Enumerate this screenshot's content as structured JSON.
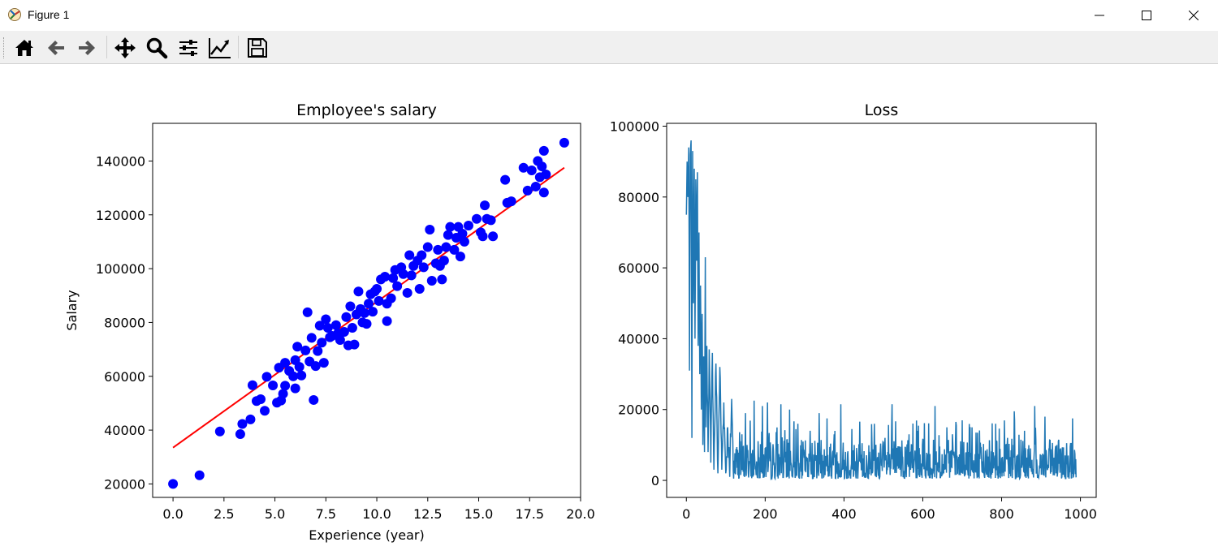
{
  "window": {
    "title": "Figure 1"
  },
  "toolbar": {
    "buttons": [
      {
        "icon": "home-icon"
      },
      {
        "icon": "back-arrow-icon"
      },
      {
        "icon": "forward-arrow-icon"
      },
      {
        "icon": "pan-icon"
      },
      {
        "icon": "zoom-icon"
      },
      {
        "icon": "subplots-config-icon"
      },
      {
        "icon": "edit-axes-icon"
      },
      {
        "icon": "save-icon"
      }
    ]
  },
  "chart_data": [
    {
      "type": "scatter",
      "title": "Employee's salary",
      "xlabel": "Experience (year)",
      "ylabel": "Salary",
      "xlim": [
        -1.0,
        20.0
      ],
      "ylim": [
        15000,
        154000
      ],
      "xticks": [
        0.0,
        2.5,
        5.0,
        7.5,
        10.0,
        12.5,
        15.0,
        17.5,
        20.0
      ],
      "xticklabels": [
        "0.0",
        "2.5",
        "5.0",
        "7.5",
        "10.0",
        "12.5",
        "15.0",
        "17.5",
        "20.0"
      ],
      "yticks": [
        20000,
        40000,
        60000,
        80000,
        100000,
        120000,
        140000
      ],
      "yticklabels": [
        "20000",
        "40000",
        "60000",
        "80000",
        "100000",
        "120000",
        "140000"
      ],
      "point_color": "#0000ff",
      "line_color": "#ff0000",
      "fit_line": {
        "x": [
          0.0,
          19.2
        ],
        "y": [
          33500,
          137500
        ]
      },
      "points": [
        [
          0.0,
          20000
        ],
        [
          1.3,
          23200
        ],
        [
          2.3,
          39500
        ],
        [
          3.3,
          38500
        ],
        [
          3.4,
          42300
        ],
        [
          3.8,
          44000
        ],
        [
          3.9,
          56700
        ],
        [
          4.1,
          50800
        ],
        [
          4.3,
          51500
        ],
        [
          4.5,
          47200
        ],
        [
          4.6,
          59800
        ],
        [
          4.9,
          56600
        ],
        [
          5.1,
          50200
        ],
        [
          5.2,
          63200
        ],
        [
          5.3,
          51000
        ],
        [
          5.4,
          53500
        ],
        [
          5.5,
          56500
        ],
        [
          5.5,
          65000
        ],
        [
          5.7,
          62000
        ],
        [
          5.9,
          60000
        ],
        [
          6.0,
          66000
        ],
        [
          6.0,
          55500
        ],
        [
          6.1,
          71000
        ],
        [
          6.2,
          63500
        ],
        [
          6.3,
          60300
        ],
        [
          6.5,
          69600
        ],
        [
          6.6,
          83800
        ],
        [
          6.7,
          65500
        ],
        [
          6.8,
          74300
        ],
        [
          6.9,
          51200
        ],
        [
          7.0,
          63800
        ],
        [
          7.1,
          69400
        ],
        [
          7.2,
          78800
        ],
        [
          7.3,
          72500
        ],
        [
          7.4,
          65000
        ],
        [
          7.5,
          81200
        ],
        [
          7.6,
          78000
        ],
        [
          7.7,
          74500
        ],
        [
          7.8,
          75000
        ],
        [
          8.0,
          79000
        ],
        [
          8.1,
          76000
        ],
        [
          8.2,
          73500
        ],
        [
          8.4,
          76500
        ],
        [
          8.5,
          82000
        ],
        [
          8.6,
          71500
        ],
        [
          8.7,
          86000
        ],
        [
          8.8,
          78000
        ],
        [
          8.9,
          71800
        ],
        [
          9.0,
          83000
        ],
        [
          9.1,
          91500
        ],
        [
          9.2,
          85000
        ],
        [
          9.3,
          80000
        ],
        [
          9.4,
          83500
        ],
        [
          9.5,
          79500
        ],
        [
          9.6,
          87000
        ],
        [
          9.7,
          90500
        ],
        [
          9.8,
          84000
        ],
        [
          9.9,
          91500
        ],
        [
          10.0,
          92500
        ],
        [
          10.1,
          88000
        ],
        [
          10.2,
          96000
        ],
        [
          10.4,
          97000
        ],
        [
          10.5,
          87000
        ],
        [
          10.5,
          80500
        ],
        [
          10.7,
          89000
        ],
        [
          10.8,
          96500
        ],
        [
          10.9,
          99500
        ],
        [
          11.0,
          93500
        ],
        [
          11.2,
          100500
        ],
        [
          11.3,
          98000
        ],
        [
          11.5,
          91000
        ],
        [
          11.6,
          105000
        ],
        [
          11.7,
          97500
        ],
        [
          11.8,
          101000
        ],
        [
          12.0,
          103000
        ],
        [
          12.1,
          92500
        ],
        [
          12.2,
          105000
        ],
        [
          12.3,
          100500
        ],
        [
          12.5,
          108000
        ],
        [
          12.6,
          114500
        ],
        [
          12.7,
          95500
        ],
        [
          12.9,
          102000
        ],
        [
          13.0,
          107000
        ],
        [
          13.1,
          101000
        ],
        [
          13.2,
          96000
        ],
        [
          13.3,
          103000
        ],
        [
          13.4,
          108000
        ],
        [
          13.5,
          112500
        ],
        [
          13.6,
          115500
        ],
        [
          13.8,
          107000
        ],
        [
          13.9,
          111500
        ],
        [
          14.0,
          115500
        ],
        [
          14.1,
          104500
        ],
        [
          14.2,
          113000
        ],
        [
          14.3,
          110000
        ],
        [
          14.5,
          116000
        ],
        [
          14.9,
          118500
        ],
        [
          15.1,
          113500
        ],
        [
          15.2,
          112000
        ],
        [
          15.3,
          123500
        ],
        [
          15.4,
          118500
        ],
        [
          15.6,
          118000
        ],
        [
          15.7,
          112000
        ],
        [
          16.3,
          133000
        ],
        [
          16.4,
          124500
        ],
        [
          16.6,
          125000
        ],
        [
          17.2,
          137500
        ],
        [
          17.4,
          129000
        ],
        [
          17.6,
          136500
        ],
        [
          17.8,
          130500
        ],
        [
          17.9,
          140000
        ],
        [
          18.0,
          134000
        ],
        [
          18.1,
          138000
        ],
        [
          18.2,
          128300
        ],
        [
          18.2,
          143800
        ],
        [
          18.3,
          135000
        ],
        [
          19.2,
          146800
        ]
      ]
    },
    {
      "type": "line",
      "title": "Loss",
      "xlabel": "",
      "ylabel": "",
      "xlim": [
        -50,
        1040
      ],
      "ylim": [
        -4800,
        100800
      ],
      "xticks": [
        0,
        200,
        400,
        600,
        800,
        1000
      ],
      "xticklabels": [
        "0",
        "200",
        "400",
        "600",
        "800",
        "1000"
      ],
      "yticks": [
        0,
        20000,
        40000,
        60000,
        80000,
        100000
      ],
      "yticklabels": [
        "0",
        "20000",
        "40000",
        "60000",
        "80000",
        "100000"
      ],
      "line_color": "#1f77b4",
      "n_points": 990,
      "key_points": [
        [
          0,
          75000
        ],
        [
          2,
          90000
        ],
        [
          4,
          80000
        ],
        [
          6,
          94000
        ],
        [
          8,
          31000
        ],
        [
          10,
          92000
        ],
        [
          12,
          96000
        ],
        [
          14,
          12000
        ],
        [
          16,
          93000
        ],
        [
          18,
          50000
        ],
        [
          20,
          88000
        ],
        [
          22,
          40000
        ],
        [
          24,
          85000
        ],
        [
          26,
          62000
        ],
        [
          28,
          87000
        ],
        [
          30,
          38000
        ],
        [
          32,
          70000
        ],
        [
          34,
          30000
        ],
        [
          36,
          55000
        ],
        [
          38,
          20000
        ],
        [
          40,
          47000
        ],
        [
          42,
          10000
        ],
        [
          44,
          35000
        ],
        [
          46,
          8000
        ],
        [
          48,
          63000
        ],
        [
          50,
          15000
        ],
        [
          52,
          38000
        ],
        [
          55,
          8000
        ],
        [
          58,
          37000
        ],
        [
          62,
          5000
        ],
        [
          66,
          36000
        ],
        [
          70,
          3000
        ],
        [
          75,
          33000
        ],
        [
          80,
          2000
        ],
        [
          85,
          32000
        ],
        [
          90,
          3000
        ],
        [
          95,
          22000
        ],
        [
          100,
          2000
        ],
        [
          105,
          15000
        ],
        [
          110,
          1000
        ],
        [
          115,
          23000
        ],
        [
          120,
          500
        ],
        [
          150,
          19000
        ],
        [
          172,
          22500
        ],
        [
          193,
          21000
        ],
        [
          206,
          22000
        ],
        [
          240,
          21500
        ],
        [
          262,
          20000
        ],
        [
          283,
          16000
        ],
        [
          314,
          14000
        ],
        [
          337,
          19000
        ],
        [
          357,
          17500
        ],
        [
          375,
          13000
        ],
        [
          392,
          21500
        ],
        [
          420,
          14500
        ],
        [
          477,
          16000
        ],
        [
          504,
          12000
        ],
        [
          522,
          21500
        ],
        [
          565,
          13000
        ],
        [
          587,
          14000
        ],
        [
          631,
          21000
        ],
        [
          661,
          15000
        ],
        [
          684,
          16500
        ],
        [
          735,
          13500
        ],
        [
          785,
          16000
        ],
        [
          815,
          12000
        ],
        [
          832,
          19500
        ],
        [
          858,
          14000
        ],
        [
          884,
          21000
        ],
        [
          910,
          18000
        ],
        [
          940,
          10000
        ],
        [
          965,
          10500
        ],
        [
          980,
          17500
        ],
        [
          988,
          6000
        ]
      ]
    }
  ]
}
